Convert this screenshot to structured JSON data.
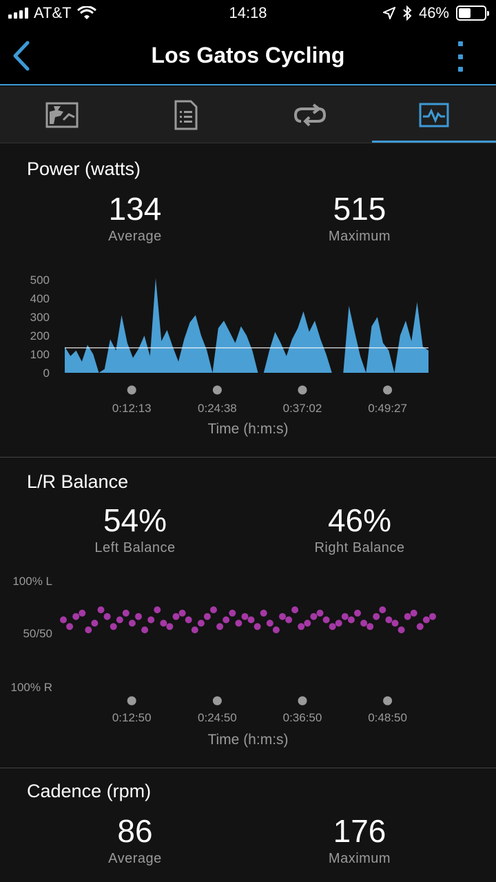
{
  "status_bar": {
    "carrier": "AT&T",
    "time": "14:18",
    "battery": "46%",
    "battery_level": 0.46
  },
  "header": {
    "title": "Los Gatos Cycling"
  },
  "tabs": [
    {
      "name": "summary-tab",
      "icon": "map-icon",
      "active": false
    },
    {
      "name": "details-tab",
      "icon": "document-icon",
      "active": false
    },
    {
      "name": "laps-tab",
      "icon": "loop-icon",
      "active": false
    },
    {
      "name": "charts-tab",
      "icon": "chart-icon",
      "active": true
    }
  ],
  "colors": {
    "accent": "#3d9ad6",
    "power_fill": "#4a9fd4",
    "balance_dot": "#c03fc0"
  },
  "power": {
    "title": "Power (watts)",
    "average_value": "134",
    "average_label": "Average",
    "max_value": "515",
    "max_label": "Maximum",
    "x_title": "Time (h:m:s)"
  },
  "balance": {
    "title": "L/R Balance",
    "left_value": "54%",
    "left_label": "Left Balance",
    "right_value": "46%",
    "right_label": "Right Balance",
    "x_title": "Time (h:m:s)"
  },
  "cadence": {
    "title": "Cadence (rpm)",
    "average_value": "86",
    "average_label": "Average",
    "max_value": "176",
    "max_label": "Maximum"
  },
  "chart_data": [
    {
      "type": "area",
      "ylabel": "",
      "ylim": [
        0,
        500
      ],
      "yticks": [
        "500",
        "400",
        "300",
        "200",
        "100",
        "0"
      ],
      "ytick_values": [
        500,
        400,
        300,
        200,
        100,
        0
      ],
      "xticks": [
        "0:12:13",
        "0:24:38",
        "0:37:02",
        "0:49:27"
      ],
      "xtick_fraction": [
        0.192,
        0.399,
        0.605,
        0.811
      ],
      "average_line": 134,
      "x": [
        0,
        1,
        2,
        3,
        4,
        5,
        6,
        7,
        8,
        9,
        10,
        11,
        12,
        13,
        14,
        15,
        16,
        17,
        18,
        19,
        20,
        21,
        22,
        23,
        24,
        25,
        26,
        27,
        28,
        29,
        30,
        31,
        32,
        33,
        34,
        35,
        36,
        37,
        38,
        39,
        40,
        41,
        42,
        43,
        44,
        45,
        46,
        47,
        48,
        49,
        50,
        51,
        52,
        53,
        54,
        55,
        56,
        57,
        58,
        59,
        60,
        61,
        62,
        63,
        64
      ],
      "values": [
        140,
        90,
        120,
        60,
        150,
        100,
        0,
        20,
        180,
        120,
        310,
        160,
        80,
        130,
        200,
        90,
        510,
        170,
        230,
        140,
        60,
        180,
        270,
        310,
        200,
        120,
        0,
        240,
        280,
        220,
        160,
        250,
        200,
        120,
        0,
        0,
        120,
        220,
        160,
        90,
        180,
        240,
        330,
        220,
        280,
        180,
        100,
        0,
        0,
        0,
        360,
        220,
        90,
        0,
        250,
        300,
        160,
        120,
        0,
        200,
        280,
        170,
        380,
        140,
        120
      ]
    },
    {
      "type": "scatter",
      "ylabel": "",
      "yticks": [
        "100% L",
        "50/50",
        "100% R"
      ],
      "xticks": [
        "0:12:50",
        "0:24:50",
        "0:36:50",
        "0:48:50"
      ],
      "xtick_fraction": [
        0.192,
        0.399,
        0.605,
        0.811
      ],
      "series": [
        {
          "values_left_pct": [
            54,
            52,
            55,
            56,
            51,
            53,
            57,
            55,
            52,
            54,
            56,
            53,
            55,
            51,
            54,
            57,
            53,
            52,
            55,
            56,
            54,
            51,
            53,
            55,
            57,
            52,
            54,
            56,
            53,
            55,
            54,
            52,
            56,
            53,
            51,
            55,
            54,
            57,
            52,
            53,
            55,
            56,
            54,
            52,
            53,
            55,
            54,
            56,
            53,
            52,
            55,
            57,
            54,
            53,
            51,
            55,
            56,
            52,
            54,
            55
          ]
        }
      ],
      "summary": {
        "left_pct": 54,
        "right_pct": 46
      }
    },
    {
      "type": "area",
      "title": "Cadence (rpm)",
      "values": [
        86
      ]
    }
  ]
}
